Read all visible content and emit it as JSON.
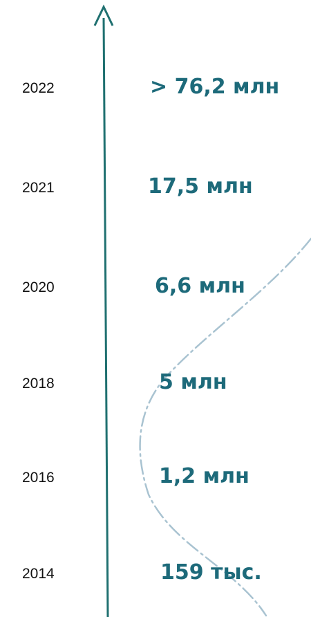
{
  "colors": {
    "accent": "#1d6a7a",
    "axis": "#1f7070",
    "curve": "#a9c3d1",
    "year_text": "#111111"
  },
  "timeline": {
    "entries": [
      {
        "year": "2022",
        "value": "> 76,2 млн"
      },
      {
        "year": "2021",
        "value": "17,5 млн"
      },
      {
        "year": "2020",
        "value": "6,6 млн"
      },
      {
        "year": "2018",
        "value": "5 млн"
      },
      {
        "year": "2016",
        "value": "1,2 млн"
      },
      {
        "year": "2014",
        "value": "159 тыс."
      }
    ]
  }
}
